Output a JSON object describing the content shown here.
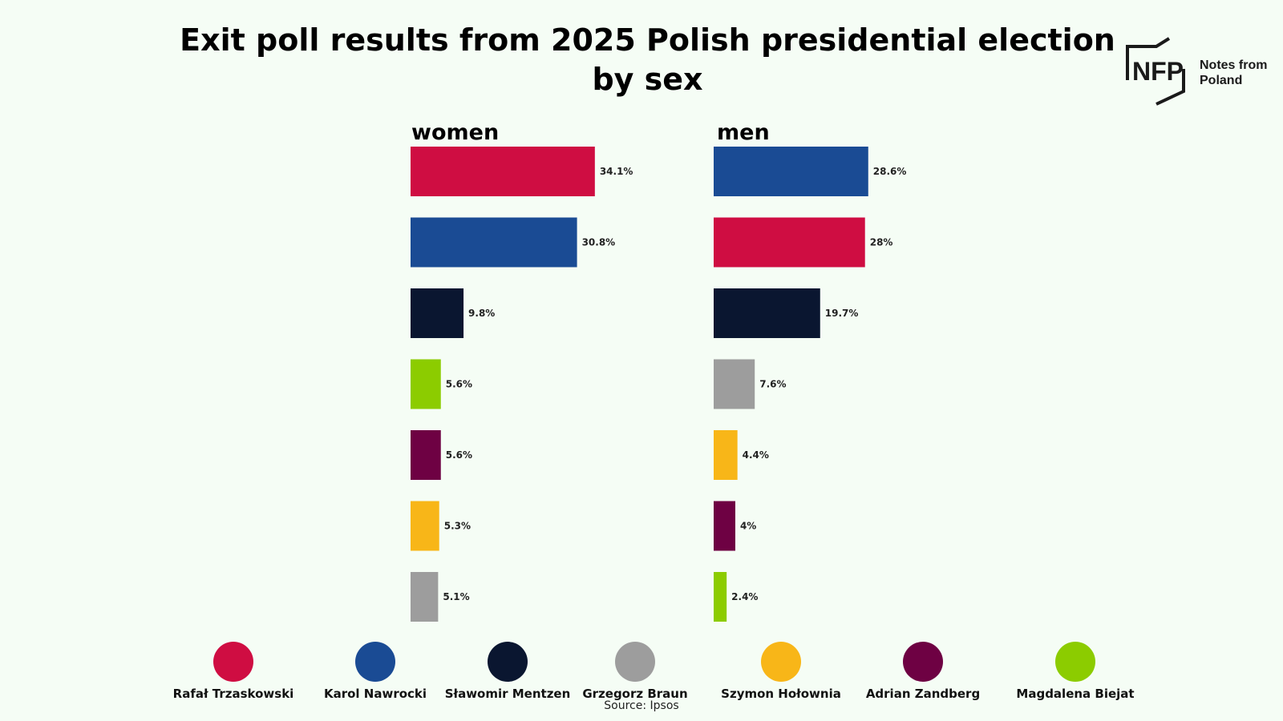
{
  "title": "Exit poll results from 2025 Polish presidential election by sex",
  "logo": {
    "mark": "NFP",
    "text": "Notes from\nPoland"
  },
  "source": "Source: Ipsos",
  "chart_data": {
    "type": "bar",
    "orientation": "horizontal",
    "panels": [
      {
        "name": "women",
        "bars": [
          {
            "candidate": "Rafał Trzaskowski",
            "value": 34.1,
            "label": "34.1%"
          },
          {
            "candidate": "Karol Nawrocki",
            "value": 30.8,
            "label": "30.8%"
          },
          {
            "candidate": "Sławomir Mentzen",
            "value": 9.8,
            "label": "9.8%"
          },
          {
            "candidate": "Magdalena Biejat",
            "value": 5.6,
            "label": "5.6%"
          },
          {
            "candidate": "Adrian Zandberg",
            "value": 5.6,
            "label": "5.6%"
          },
          {
            "candidate": "Szymon Hołownia",
            "value": 5.3,
            "label": "5.3%"
          },
          {
            "candidate": "Grzegorz Braun",
            "value": 5.1,
            "label": "5.1%"
          }
        ]
      },
      {
        "name": "men",
        "bars": [
          {
            "candidate": "Karol Nawrocki",
            "value": 28.6,
            "label": "28.6%"
          },
          {
            "candidate": "Rafał Trzaskowski",
            "value": 28,
            "label": "28%"
          },
          {
            "candidate": "Sławomir Mentzen",
            "value": 19.7,
            "label": "19.7%"
          },
          {
            "candidate": "Grzegorz Braun",
            "value": 7.6,
            "label": "7.6%"
          },
          {
            "candidate": "Szymon Hołownia",
            "value": 4.4,
            "label": "4.4%"
          },
          {
            "candidate": "Adrian Zandberg",
            "value": 4,
            "label": "4%"
          },
          {
            "candidate": "Magdalena Biejat",
            "value": 2.4,
            "label": "2.4%"
          }
        ]
      }
    ],
    "legend": [
      {
        "name": "Rafał Trzaskowski",
        "color": "#cf0d42"
      },
      {
        "name": "Karol Nawrocki",
        "color": "#1a4b94"
      },
      {
        "name": "Sławomir Mentzen",
        "color": "#0a1630"
      },
      {
        "name": "Grzegorz Braun",
        "color": "#9d9d9d"
      },
      {
        "name": "Szymon Hołownia",
        "color": "#f8b618"
      },
      {
        "name": "Adrian Zandberg",
        "color": "#6e0143"
      },
      {
        "name": "Magdalena Biejat",
        "color": "#8ccc00"
      }
    ],
    "legend_position": "bottom",
    "grid": false,
    "xlim": [
      0,
      34.1
    ]
  }
}
